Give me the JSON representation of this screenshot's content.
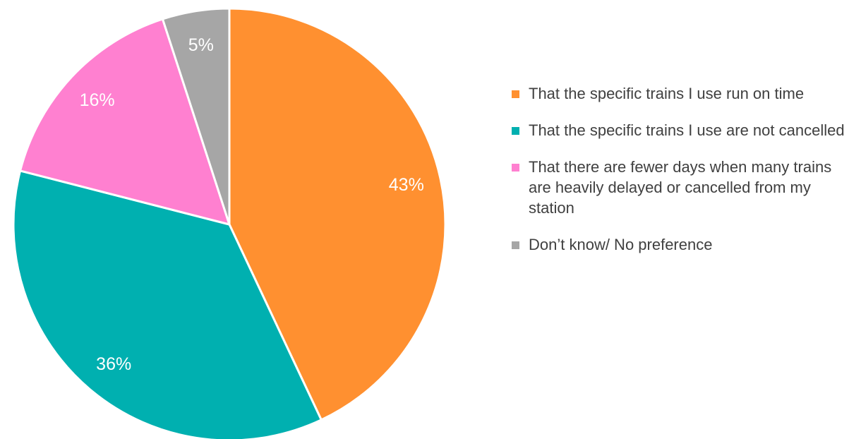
{
  "chart_data": {
    "type": "pie",
    "title": "",
    "legend_position": "right",
    "start_angle_deg": 0,
    "direction": "clockwise",
    "slices": [
      {
        "label": "That the specific trains I use run on time",
        "value": 43,
        "display": "43%",
        "color": "#FF9030"
      },
      {
        "label": "That the specific trains I use are not cancelled",
        "value": 36,
        "display": "36%",
        "color": "#00B0B0"
      },
      {
        "label": "That there are fewer days when many trains are heavily delayed or cancelled from my station",
        "value": 16,
        "display": "16%",
        "color": "#FF80D0"
      },
      {
        "label": "Don’t know/ No preference",
        "value": 5,
        "display": "5%",
        "color": "#A6A6A6"
      }
    ]
  }
}
